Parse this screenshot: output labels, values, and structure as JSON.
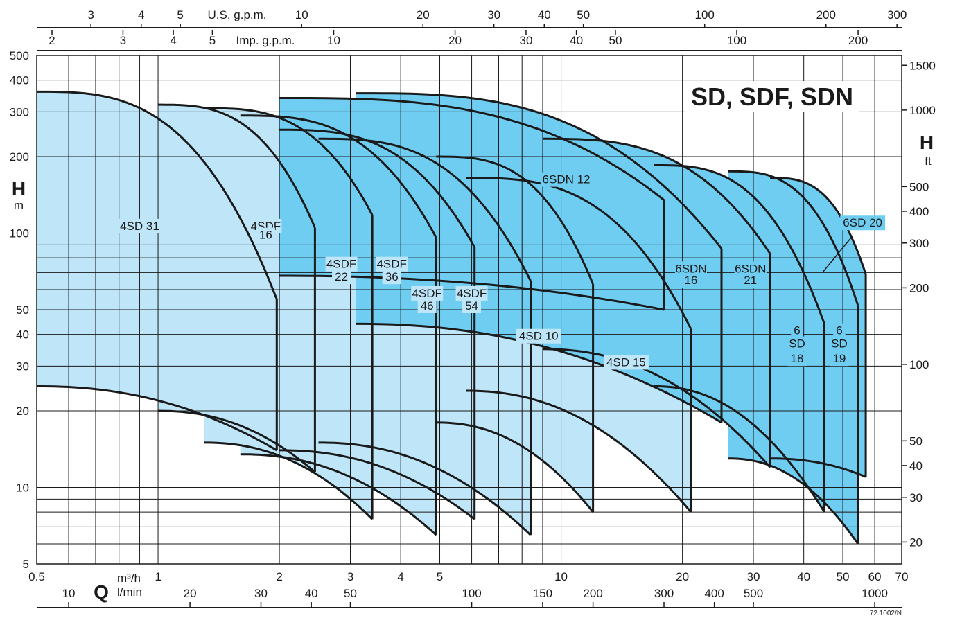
{
  "chart_data": {
    "type": "area",
    "title": "SD, SDF, SDN",
    "x_axis": {
      "scale": "log",
      "range_m3h": [
        0.5,
        70
      ],
      "label_q": "Q",
      "unit_m3h": "m³/h",
      "unit_lmin": "l/min",
      "ticks_m3h": [
        "0.5",
        "1",
        "2",
        "3",
        "4",
        "5",
        "10",
        "20",
        "30",
        "40",
        "50",
        "60",
        "70"
      ],
      "ticks_lmin": [
        "10",
        "20",
        "30",
        "40",
        "50",
        "100",
        "150",
        "200",
        "300",
        "400",
        "500",
        "1000"
      ],
      "ticks_usgpm": [
        "3",
        "4",
        "5",
        "10",
        "20",
        "30",
        "40",
        "50",
        "100",
        "200",
        "300"
      ],
      "ticks_impgpm": [
        "2",
        "3",
        "4",
        "5",
        "10",
        "20",
        "30",
        "40",
        "50",
        "100",
        "200"
      ],
      "usgpm_label": "U.S. g.p.m.",
      "impgpm_label": "Imp. g.p.m."
    },
    "y_axis": {
      "scale": "log",
      "range_m": [
        5,
        500
      ],
      "label": "H",
      "unit_left": "m",
      "unit_right": "ft",
      "ticks_m": [
        "5",
        "10",
        "20",
        "30",
        "40",
        "50",
        "100",
        "200",
        "300",
        "400",
        "500"
      ],
      "ticks_ft": [
        "20",
        "30",
        "40",
        "50",
        "100",
        "200",
        "300",
        "400",
        "500",
        "1000",
        "1500"
      ]
    },
    "grid": true,
    "colors": {
      "light_fill": "#bee5f8",
      "dark_fill": "#6fcdf2",
      "curve": "#1a1a1a"
    },
    "series": [
      {
        "name": "4SD 31",
        "fill": "light",
        "q": [
          0.5,
          1.97
        ],
        "h_max": [
          360,
          55
        ],
        "h_min": [
          25,
          14
        ]
      },
      {
        "name": "4SDF 16",
        "fill": "light",
        "q": [
          1.0,
          2.45
        ],
        "h_max": [
          320,
          105
        ],
        "h_min": [
          20,
          11.5
        ]
      },
      {
        "name": "4SDF 22",
        "fill": "light",
        "q": [
          1.3,
          3.4
        ],
        "h_max": [
          310,
          118
        ],
        "h_min": [
          15,
          7.5
        ]
      },
      {
        "name": "4SDF 36",
        "fill": "light",
        "q": [
          1.6,
          4.9
        ],
        "h_max": [
          290,
          96
        ],
        "h_min": [
          13.5,
          6.5
        ]
      },
      {
        "name": "4SDF 46",
        "fill": "light",
        "q": [
          2.0,
          6.1
        ],
        "h_max": [
          255,
          88
        ],
        "h_min": [
          14,
          7.5
        ]
      },
      {
        "name": "4SDF 54",
        "fill": "light",
        "q": [
          2.5,
          8.4
        ],
        "h_max": [
          235,
          65
        ],
        "h_min": [
          15,
          6.5
        ]
      },
      {
        "name": "4SD 10",
        "fill": "light",
        "q": [
          4.9,
          12.0
        ],
        "h_max": [
          200,
          63
        ],
        "h_min": [
          18,
          8
        ]
      },
      {
        "name": "4SD 15",
        "fill": "light",
        "q": [
          5.8,
          21.0
        ],
        "h_max": [
          165,
          42
        ],
        "h_min": [
          24,
          8
        ]
      },
      {
        "name": "6SDN 12",
        "fill": "dark",
        "q": [
          2.0,
          18.0
        ],
        "h_max": [
          340,
          135
        ],
        "h_min": [
          68,
          50
        ]
      },
      {
        "name": "6SDN 16",
        "fill": "dark",
        "q": [
          3.1,
          25.0
        ],
        "h_max": [
          355,
          87
        ],
        "h_min": [
          44,
          18
        ]
      },
      {
        "name": "6SDN 21",
        "fill": "dark",
        "q": [
          9.0,
          33.0
        ],
        "h_max": [
          235,
          83
        ],
        "h_min": [
          35,
          12
        ]
      },
      {
        "name": "6 SD 18",
        "fill": "dark",
        "q": [
          17.0,
          45.0
        ],
        "h_max": [
          185,
          44
        ],
        "h_min": [
          25,
          8
        ]
      },
      {
        "name": "6 SD 19",
        "fill": "dark",
        "q": [
          26.0,
          54.5
        ],
        "h_max": [
          175,
          52
        ],
        "h_min": [
          13,
          6
        ]
      },
      {
        "name": "6SD 20",
        "fill": "dark",
        "q": [
          33.0,
          57.0
        ],
        "h_max": [
          165,
          69
        ],
        "h_min": [
          13,
          11
        ]
      }
    ],
    "labels": [
      {
        "text": "4SD 31",
        "q": 0.9,
        "h": 103
      },
      {
        "text": "4SDF",
        "q": 1.85,
        "h": 103
      },
      {
        "text": "16",
        "q": 1.85,
        "h": 95
      },
      {
        "text": "4SDF",
        "q": 2.85,
        "h": 73
      },
      {
        "text": "22",
        "q": 2.85,
        "h": 65
      },
      {
        "text": "4SDF",
        "q": 3.8,
        "h": 73
      },
      {
        "text": "36",
        "q": 3.8,
        "h": 65
      },
      {
        "text": "4SDF",
        "q": 4.65,
        "h": 56
      },
      {
        "text": "46",
        "q": 4.65,
        "h": 50
      },
      {
        "text": "4SDF",
        "q": 6.0,
        "h": 56
      },
      {
        "text": "54",
        "q": 6.0,
        "h": 50
      },
      {
        "text": "4SD 10",
        "q": 8.8,
        "h": 38
      },
      {
        "text": "4SD 15",
        "q": 14.5,
        "h": 30
      },
      {
        "text": "6SDN 12",
        "q": 10.3,
        "h": 157
      },
      {
        "text": "6SDN",
        "q": 21.0,
        "h": 70
      },
      {
        "text": "16",
        "q": 21.0,
        "h": 63
      },
      {
        "text": "6SDN",
        "q": 29.5,
        "h": 70
      },
      {
        "text": "21",
        "q": 29.5,
        "h": 63
      },
      {
        "text": "6",
        "q": 38.5,
        "h": 40
      },
      {
        "text": "SD",
        "q": 38.5,
        "h": 35.5
      },
      {
        "text": "18",
        "q": 38.5,
        "h": 31
      },
      {
        "text": "6",
        "q": 49.0,
        "h": 40
      },
      {
        "text": "SD",
        "q": 49.0,
        "h": 35.5
      },
      {
        "text": "19",
        "q": 49.0,
        "h": 31
      },
      {
        "text": "6SD 20",
        "q": 56.0,
        "h": 106
      }
    ],
    "code": "72.1002/N"
  }
}
